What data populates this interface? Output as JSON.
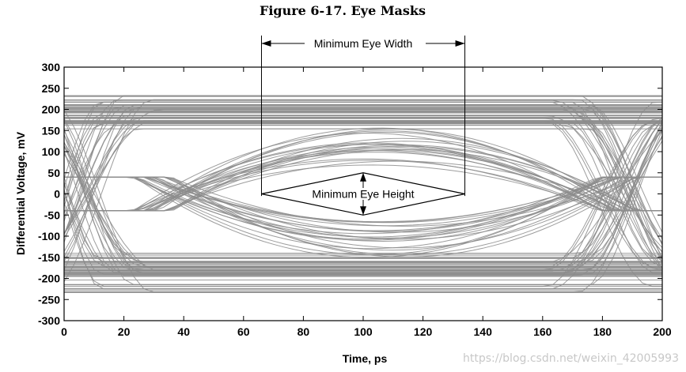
{
  "figure_title": "Figure 6-17.  Eye Masks",
  "watermark": "https://blog.csdn.net/weixin_42005993",
  "chart_data": {
    "type": "line",
    "title": "Figure 6-17.  Eye Masks",
    "xlabel": "Time, ps",
    "ylabel": "Differential Voltage, mV",
    "xlim": [
      0,
      200
    ],
    "ylim": [
      -300,
      300
    ],
    "xticks": [
      0,
      20,
      40,
      60,
      80,
      100,
      120,
      140,
      160,
      180,
      200
    ],
    "yticks": [
      300,
      250,
      200,
      150,
      100,
      50,
      0,
      -50,
      -100,
      -150,
      -200,
      -250,
      -300
    ],
    "grid": false,
    "trace_color": "#8c8c8c",
    "eye_diagram": {
      "high_level_range_mv": [
        150,
        235
      ],
      "low_level_range_mv": [
        -235,
        -140
      ],
      "crossing_1_ps": [
        0,
        30
      ],
      "crossing_2_ps": [
        168,
        200
      ],
      "inner_eye_peak_mv": [
        65,
        -65
      ]
    },
    "annotations": {
      "eye_width_label": "Minimum Eye Width",
      "eye_width_ps": [
        66,
        134
      ],
      "eye_height_label": "Minimum Eye Height",
      "eye_height_mv": [
        -50,
        50
      ],
      "mask_vertices": [
        [
          66,
          0
        ],
        [
          100,
          50
        ],
        [
          134,
          0
        ],
        [
          100,
          -50
        ]
      ]
    }
  }
}
